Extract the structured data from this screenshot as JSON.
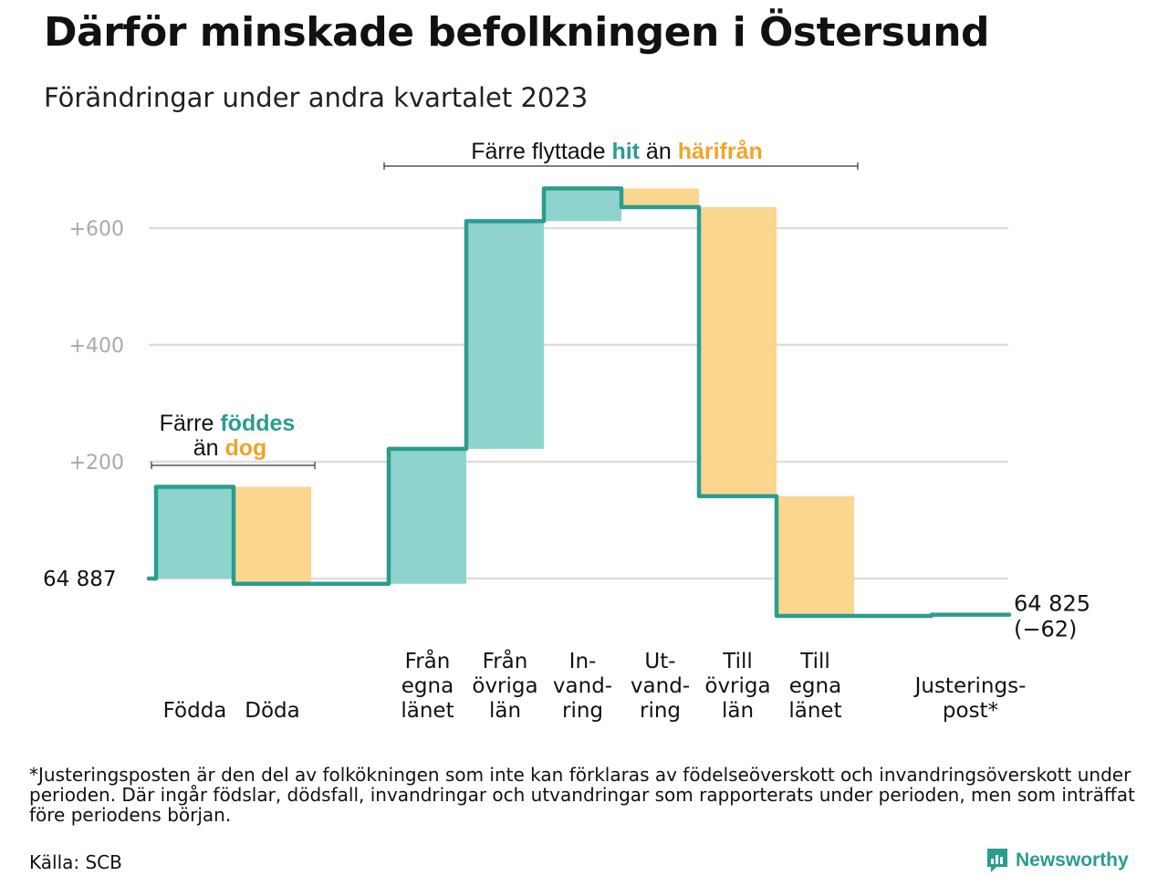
{
  "title": "Därför minskade befolkningen i Östersund",
  "subtitle": "Förändringar under andra kvartalet 2023",
  "colors": {
    "hit_fill": "#8ed4cc",
    "harifran_fill": "#fbd68e",
    "line": "#2a9d8f",
    "hit_text": "#2a9d8f",
    "harifran_text": "#f0a429",
    "grid": "#dddddd",
    "tick_text": "#aaaaaa"
  },
  "chart_data": {
    "type": "bar",
    "subtype": "waterfall",
    "start": {
      "label": "64 887",
      "value": 64887
    },
    "end": {
      "label": "64 825",
      "change_label": "(−62)",
      "value": 64825,
      "change": -62
    },
    "yticks": [
      {
        "value": 200,
        "label": "+200"
      },
      {
        "value": 400,
        "label": "+400"
      },
      {
        "value": 600,
        "label": "+600"
      }
    ],
    "ylim": [
      -90,
      690
    ],
    "grid": true,
    "steps": [
      {
        "lines": [
          "Födda"
        ],
        "value": 157,
        "kind": "hit"
      },
      {
        "lines": [
          "Döda"
        ],
        "value": -166,
        "kind": "harifran"
      },
      {
        "lines": [
          "Från",
          "egna",
          "länet"
        ],
        "value": 231,
        "kind": "hit"
      },
      {
        "lines": [
          "Från",
          "övriga",
          "län"
        ],
        "value": 390,
        "kind": "hit"
      },
      {
        "lines": [
          "In-",
          "vand-",
          "ring"
        ],
        "value": 56,
        "kind": "hit"
      },
      {
        "lines": [
          "Ut-",
          "vand-",
          "ring"
        ],
        "value": -32,
        "kind": "harifran"
      },
      {
        "lines": [
          "Till",
          "övriga",
          "län"
        ],
        "value": -495,
        "kind": "harifran"
      },
      {
        "lines": [
          "Till",
          "egna",
          "länet"
        ],
        "value": -205,
        "kind": "harifran"
      },
      {
        "lines": [
          "Justerings-",
          "post*"
        ],
        "value": 2,
        "kind": "line"
      }
    ],
    "annotations": [
      {
        "group": "births",
        "line1": "Färre",
        "hl1": "föddes",
        "line2": "än",
        "hl2": "dog"
      },
      {
        "group": "migration",
        "pre": "Färre flyttade",
        "hl1": "hit",
        "mid": "än",
        "hl2": "härifrån"
      }
    ]
  },
  "footnote": "*Justeringsposten är den del av folkökningen som inte kan förklaras av födelseöverskott och invandringsöverskott under perioden. Där ingår födslar, dödsfall, invandringar och utvandringar som rapporterats under perioden, men som inträffat före periodens början.",
  "source": "Källa: SCB",
  "brand": {
    "name": "Newsworthy",
    "icon": "newsworthy-logo-icon"
  }
}
